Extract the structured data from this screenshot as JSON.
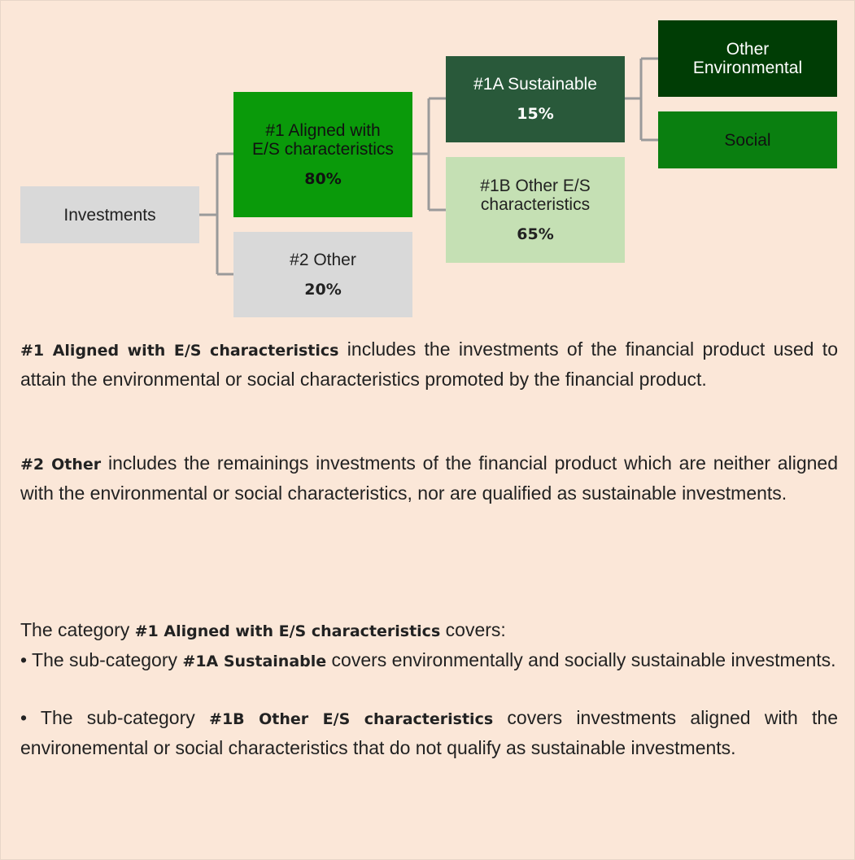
{
  "nodes": [
    {
      "label": "Investments"
    },
    {
      "label": "#1 Aligned with E/S characteristics",
      "value": "80%"
    },
    {
      "label": "#2 Other",
      "value": "20%"
    },
    {
      "label": "#1A Sustainable",
      "value": "15%"
    },
    {
      "label": "#1B Other E/S characteristics",
      "value": "65%"
    },
    {
      "label": "Other Environmental"
    },
    {
      "label": "Social"
    }
  ],
  "paragraphs": [
    [
      {
        "text": "#1 Aligned with E/S characteristics",
        "bold": true
      },
      {
        "text": " includes the investments of the financial product used to attain the environmental or social characteristics promoted by the financial product."
      }
    ],
    [
      {
        "text": "#2 Other",
        "bold": true
      },
      {
        "text": " includes the remainings investments of the financial product which are neither aligned with the environmental or social characteristics, nor are qualified as sustainable investments."
      }
    ],
    [
      {
        "text": "The category "
      },
      {
        "text": "#1 Aligned with E/S characteristics",
        "bold": true
      },
      {
        "text": " covers:"
      }
    ],
    [
      {
        "text": "•  The sub-category "
      },
      {
        "text": "#1A Sustainable",
        "bold": true
      },
      {
        "text": " covers environmentally and socially sustainable investments."
      }
    ],
    [
      {
        "text": "•  The sub-category "
      },
      {
        "text": "#1B Other E/S characteristics",
        "bold": true
      },
      {
        "text": " covers investments aligned with the environemental or social characteristics that do not qualify as sustainable investments."
      }
    ]
  ]
}
